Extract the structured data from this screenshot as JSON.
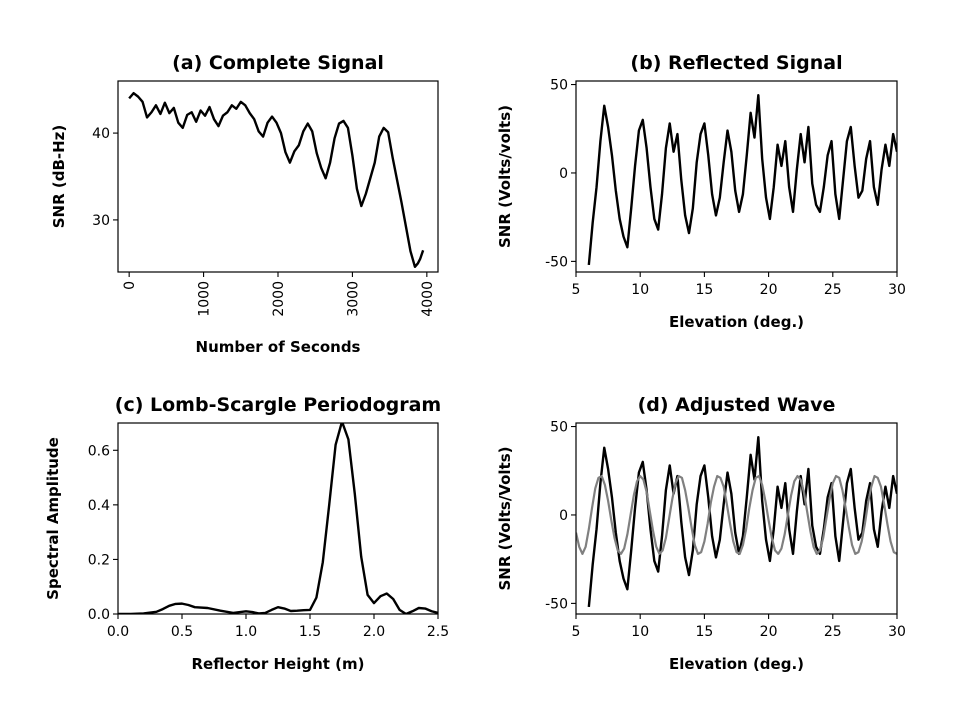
{
  "chart_data": [
    {
      "id": "a",
      "type": "line",
      "title": "(a) Complete Signal",
      "xlabel": "Number of Seconds",
      "ylabel": "SNR (dB-Hz)",
      "xlim": [
        -150,
        4150
      ],
      "ylim": [
        24,
        46
      ],
      "xticks": [
        0,
        1000,
        2000,
        3000,
        4000
      ],
      "yticks": [
        30,
        40
      ],
      "xtick_rotation": 90,
      "grid": false,
      "series": [
        {
          "color": "#000000",
          "x": [
            0,
            60,
            120,
            180,
            240,
            300,
            360,
            420,
            480,
            540,
            600,
            660,
            720,
            780,
            840,
            900,
            960,
            1020,
            1080,
            1140,
            1200,
            1260,
            1320,
            1380,
            1440,
            1500,
            1560,
            1620,
            1680,
            1740,
            1800,
            1860,
            1920,
            1980,
            2040,
            2100,
            2160,
            2220,
            2280,
            2340,
            2400,
            2460,
            2520,
            2580,
            2640,
            2700,
            2760,
            2820,
            2880,
            2940,
            3000,
            3060,
            3120,
            3180,
            3240,
            3300,
            3360,
            3420,
            3480,
            3540,
            3600,
            3660,
            3720,
            3780,
            3840,
            3880,
            3910,
            3930,
            3950
          ],
          "y": [
            44.0,
            44.6,
            44.2,
            43.6,
            41.8,
            42.4,
            43.2,
            42.2,
            43.5,
            42.3,
            42.9,
            41.2,
            40.6,
            42.1,
            42.4,
            41.3,
            42.6,
            42.0,
            43.0,
            41.6,
            40.8,
            42.0,
            42.4,
            43.2,
            42.8,
            43.6,
            43.2,
            42.3,
            41.6,
            40.2,
            39.6,
            41.2,
            41.9,
            41.2,
            40.0,
            37.8,
            36.6,
            37.9,
            38.6,
            40.2,
            41.1,
            40.2,
            37.7,
            36.0,
            34.8,
            36.6,
            39.4,
            41.1,
            41.4,
            40.6,
            37.4,
            33.6,
            31.6,
            33.0,
            34.8,
            36.6,
            39.6,
            40.6,
            40.1,
            37.2,
            34.6,
            32.0,
            29.2,
            26.4,
            24.6,
            25.0,
            25.5,
            26.0,
            26.5
          ]
        }
      ]
    },
    {
      "id": "b",
      "type": "line",
      "title": "(b) Reflected Signal",
      "xlabel": "Elevation (deg.)",
      "ylabel": "SNR (Volts/volts)",
      "xlim": [
        5,
        30
      ],
      "ylim": [
        -56,
        52
      ],
      "xticks": [
        5,
        10,
        15,
        20,
        25,
        30
      ],
      "yticks": [
        -50,
        0,
        50
      ],
      "grid": false,
      "series": [
        {
          "color": "#000000",
          "x": [
            6.0,
            6.3,
            6.6,
            6.9,
            7.2,
            7.5,
            7.8,
            8.1,
            8.4,
            8.7,
            9.0,
            9.3,
            9.6,
            9.9,
            10.2,
            10.5,
            10.8,
            11.1,
            11.4,
            11.7,
            12.0,
            12.3,
            12.6,
            12.9,
            13.2,
            13.5,
            13.8,
            14.1,
            14.4,
            14.7,
            15.0,
            15.3,
            15.6,
            15.9,
            16.2,
            16.5,
            16.8,
            17.1,
            17.4,
            17.7,
            18.0,
            18.3,
            18.6,
            18.9,
            19.2,
            19.5,
            19.8,
            20.1,
            20.4,
            20.7,
            21.0,
            21.3,
            21.6,
            21.9,
            22.2,
            22.5,
            22.8,
            23.1,
            23.4,
            23.7,
            24.0,
            24.3,
            24.6,
            24.9,
            25.2,
            25.5,
            25.8,
            26.1,
            26.4,
            26.7,
            27.0,
            27.3,
            27.6,
            27.9,
            28.2,
            28.5,
            28.8,
            29.1,
            29.4,
            29.7,
            30.0
          ],
          "y": [
            -52,
            -28,
            -8,
            18,
            38,
            26,
            10,
            -10,
            -26,
            -36,
            -42,
            -20,
            4,
            24,
            30,
            14,
            -8,
            -26,
            -32,
            -12,
            14,
            28,
            12,
            22,
            -4,
            -24,
            -34,
            -20,
            6,
            22,
            28,
            10,
            -12,
            -24,
            -14,
            6,
            24,
            12,
            -10,
            -22,
            -12,
            10,
            34,
            20,
            44,
            8,
            -14,
            -26,
            -8,
            16,
            4,
            18,
            -8,
            -22,
            2,
            22,
            6,
            26,
            -6,
            -18,
            -22,
            -8,
            10,
            18,
            -12,
            -26,
            -4,
            18,
            26,
            4,
            -14,
            -10,
            8,
            18,
            -8,
            -18,
            2,
            16,
            4,
            22,
            12
          ]
        }
      ]
    },
    {
      "id": "c",
      "type": "line",
      "title": "(c) Lomb-Scargle Periodogram",
      "xlabel": "Reflector Height (m)",
      "ylabel": "Spectral Amplitude",
      "xlim": [
        0,
        2.5
      ],
      "ylim": [
        0,
        0.7
      ],
      "xticks": [
        0.0,
        0.5,
        1.0,
        1.5,
        2.0,
        2.5
      ],
      "yticks": [
        0.0,
        0.2,
        0.4,
        0.6
      ],
      "grid": false,
      "series": [
        {
          "color": "#000000",
          "x": [
            0.0,
            0.1,
            0.2,
            0.3,
            0.35,
            0.4,
            0.45,
            0.5,
            0.55,
            0.6,
            0.7,
            0.8,
            0.9,
            1.0,
            1.05,
            1.1,
            1.15,
            1.2,
            1.25,
            1.3,
            1.35,
            1.4,
            1.45,
            1.5,
            1.55,
            1.6,
            1.65,
            1.7,
            1.75,
            1.8,
            1.85,
            1.9,
            1.95,
            2.0,
            2.05,
            2.1,
            2.15,
            2.2,
            2.25,
            2.3,
            2.35,
            2.4,
            2.45,
            2.5
          ],
          "y": [
            0.0,
            0.0,
            0.002,
            0.008,
            0.018,
            0.03,
            0.037,
            0.038,
            0.033,
            0.025,
            0.022,
            0.012,
            0.004,
            0.01,
            0.007,
            0.002,
            0.004,
            0.015,
            0.025,
            0.02,
            0.011,
            0.012,
            0.014,
            0.015,
            0.06,
            0.19,
            0.4,
            0.62,
            0.705,
            0.64,
            0.44,
            0.21,
            0.07,
            0.04,
            0.065,
            0.075,
            0.055,
            0.015,
            0.0,
            0.01,
            0.022,
            0.02,
            0.01,
            0.004
          ]
        }
      ]
    },
    {
      "id": "d",
      "type": "line",
      "title": "(d) Adjusted Wave",
      "xlabel": "Elevation (deg.)",
      "ylabel": "SNR (Volts/Volts)",
      "xlim": [
        5,
        30
      ],
      "ylim": [
        -56,
        52
      ],
      "xticks": [
        5,
        10,
        15,
        20,
        25,
        30
      ],
      "yticks": [
        -50,
        0,
        50
      ],
      "grid": false,
      "series": [
        {
          "color": "#000000",
          "x": [
            6.0,
            6.3,
            6.6,
            6.9,
            7.2,
            7.5,
            7.8,
            8.1,
            8.4,
            8.7,
            9.0,
            9.3,
            9.6,
            9.9,
            10.2,
            10.5,
            10.8,
            11.1,
            11.4,
            11.7,
            12.0,
            12.3,
            12.6,
            12.9,
            13.2,
            13.5,
            13.8,
            14.1,
            14.4,
            14.7,
            15.0,
            15.3,
            15.6,
            15.9,
            16.2,
            16.5,
            16.8,
            17.1,
            17.4,
            17.7,
            18.0,
            18.3,
            18.6,
            18.9,
            19.2,
            19.5,
            19.8,
            20.1,
            20.4,
            20.7,
            21.0,
            21.3,
            21.6,
            21.9,
            22.2,
            22.5,
            22.8,
            23.1,
            23.4,
            23.7,
            24.0,
            24.3,
            24.6,
            24.9,
            25.2,
            25.5,
            25.8,
            26.1,
            26.4,
            26.7,
            27.0,
            27.3,
            27.6,
            27.9,
            28.2,
            28.5,
            28.8,
            29.1,
            29.4,
            29.7,
            30.0
          ],
          "y": [
            -52,
            -28,
            -8,
            18,
            38,
            26,
            10,
            -10,
            -26,
            -36,
            -42,
            -20,
            4,
            24,
            30,
            14,
            -8,
            -26,
            -32,
            -12,
            14,
            28,
            12,
            22,
            -4,
            -24,
            -34,
            -20,
            6,
            22,
            28,
            10,
            -12,
            -24,
            -14,
            6,
            24,
            12,
            -10,
            -22,
            -12,
            10,
            34,
            20,
            44,
            8,
            -14,
            -26,
            -8,
            16,
            4,
            18,
            -8,
            -22,
            2,
            22,
            6,
            26,
            -6,
            -18,
            -22,
            -8,
            10,
            18,
            -12,
            -26,
            -4,
            18,
            26,
            4,
            -14,
            -10,
            8,
            18,
            -8,
            -18,
            2,
            16,
            4,
            22,
            12
          ]
        },
        {
          "color": "#808080",
          "x": [
            5.0,
            5.25,
            5.5,
            5.75,
            6.0,
            6.25,
            6.5,
            6.75,
            7.0,
            7.25,
            7.5,
            7.75,
            8.0,
            8.25,
            8.5,
            8.75,
            9.0,
            9.25,
            9.5,
            9.75,
            10.0,
            10.25,
            10.5,
            10.75,
            11.0,
            11.25,
            11.5,
            11.75,
            12.0,
            12.25,
            12.5,
            12.75,
            13.0,
            13.25,
            13.5,
            13.75,
            14.0,
            14.25,
            14.5,
            14.75,
            15.0,
            15.25,
            15.5,
            15.75,
            16.0,
            16.25,
            16.5,
            16.75,
            17.0,
            17.25,
            17.5,
            17.75,
            18.0,
            18.25,
            18.5,
            18.75,
            19.0,
            19.25,
            19.5,
            19.75,
            20.0,
            20.25,
            20.5,
            20.75,
            21.0,
            21.25,
            21.5,
            21.75,
            22.0,
            22.25,
            22.5,
            22.75,
            23.0,
            23.25,
            23.5,
            23.75,
            24.0,
            24.25,
            24.5,
            24.75,
            25.0,
            25.25,
            25.5,
            25.75,
            26.0,
            26.25,
            26.5,
            26.75,
            27.0,
            27.25,
            27.5,
            27.75,
            28.0,
            28.25,
            28.5,
            28.75,
            29.0,
            29.25,
            29.5,
            29.75,
            30.0
          ],
          "y": [
            -10,
            -18,
            -22,
            -18,
            -8,
            4,
            15,
            21,
            22,
            17,
            8,
            -3,
            -13,
            -20,
            -22,
            -19,
            -11,
            0,
            11,
            19,
            22,
            20,
            13,
            2,
            -9,
            -18,
            -22,
            -20,
            -13,
            -2,
            9,
            18,
            22,
            21,
            14,
            4,
            -7,
            -17,
            -22,
            -21,
            -15,
            -5,
            7,
            16,
            22,
            21,
            16,
            6,
            -5,
            -15,
            -21,
            -22,
            -17,
            -8,
            4,
            14,
            21,
            22,
            17,
            8,
            -3,
            -13,
            -20,
            -22,
            -19,
            -11,
            0,
            11,
            19,
            22,
            20,
            13,
            2,
            -9,
            -18,
            -22,
            -20,
            -13,
            -2,
            9,
            18,
            22,
            21,
            14,
            4,
            -7,
            -17,
            -22,
            -21,
            -15,
            -5,
            7,
            16,
            22,
            21,
            16,
            6,
            -5,
            -15,
            -21,
            -22
          ]
        }
      ]
    }
  ]
}
